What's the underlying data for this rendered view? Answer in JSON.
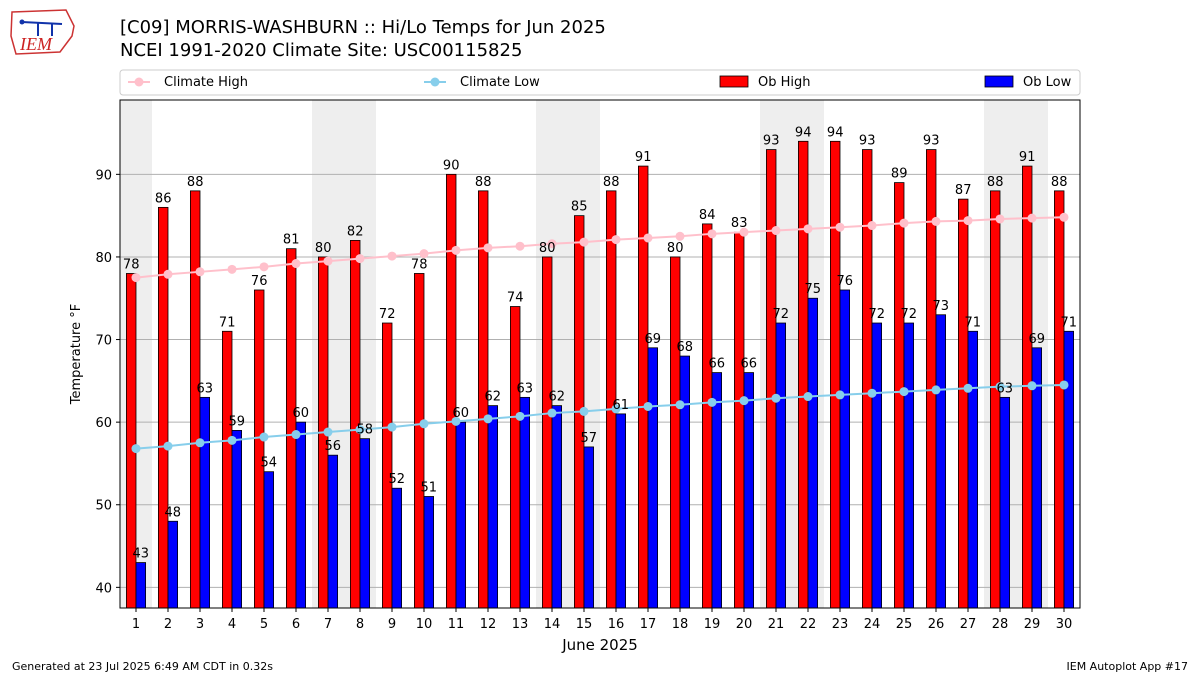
{
  "header": {
    "title_line1": "[C09] MORRIS-WASHBURN :: Hi/Lo Temps for Jun 2025",
    "title_line2": "NCEI 1991-2020 Climate Site: USC00115825",
    "logo_text": "IEM"
  },
  "footer": {
    "left": "Generated at 23 Jul 2025 6:49 AM CDT in 0.32s",
    "right": "IEM Autoplot App #17"
  },
  "colors": {
    "ob_high": "#ff0000",
    "ob_low": "#0000ff",
    "climate_high": "#ffc0cb",
    "climate_low": "#87ceeb",
    "weekend_shade": "#eeeeee",
    "grid": "#b0b0b0"
  },
  "chart_data": {
    "type": "bar",
    "xlabel": "June 2025",
    "ylabel": "Temperature °F",
    "ylim": [
      37.5,
      99
    ],
    "yticks": [
      40,
      50,
      60,
      70,
      80,
      90
    ],
    "grid": "horizontal",
    "legend_position": "top",
    "categories": [
      "1",
      "2",
      "3",
      "4",
      "5",
      "6",
      "7",
      "8",
      "9",
      "10",
      "11",
      "12",
      "13",
      "14",
      "15",
      "16",
      "17",
      "18",
      "19",
      "20",
      "21",
      "22",
      "23",
      "24",
      "25",
      "26",
      "27",
      "28",
      "29",
      "30"
    ],
    "weekend_days": [
      1,
      7,
      8,
      14,
      15,
      21,
      22,
      28,
      29
    ],
    "series": [
      {
        "name": "Climate High",
        "kind": "line",
        "values": [
          77.5,
          77.9,
          78.2,
          78.5,
          78.8,
          79.2,
          79.5,
          79.8,
          80.1,
          80.4,
          80.8,
          81.1,
          81.3,
          81.6,
          81.8,
          82.1,
          82.3,
          82.5,
          82.8,
          83.0,
          83.2,
          83.4,
          83.6,
          83.8,
          84.1,
          84.3,
          84.4,
          84.6,
          84.7,
          84.8
        ]
      },
      {
        "name": "Climate Low",
        "kind": "line",
        "values": [
          56.8,
          57.1,
          57.5,
          57.8,
          58.2,
          58.5,
          58.8,
          59.1,
          59.4,
          59.8,
          60.1,
          60.4,
          60.7,
          61.1,
          61.3,
          61.6,
          61.9,
          62.1,
          62.4,
          62.6,
          62.9,
          63.1,
          63.3,
          63.5,
          63.7,
          63.9,
          64.1,
          64.3,
          64.4,
          64.5
        ]
      },
      {
        "name": "Ob High",
        "kind": "bar",
        "values": [
          78,
          86,
          88,
          71,
          76,
          81,
          80,
          82,
          72,
          78,
          90,
          88,
          74,
          80,
          85,
          88,
          91,
          80,
          84,
          83,
          93,
          94,
          94,
          93,
          89,
          93,
          87,
          88,
          91,
          88
        ]
      },
      {
        "name": "Ob Low",
        "kind": "bar",
        "values": [
          43,
          48,
          63,
          59,
          54,
          60,
          56,
          58,
          52,
          51,
          60,
          62,
          63,
          62,
          57,
          61,
          69,
          68,
          66,
          66,
          72,
          75,
          76,
          72,
          72,
          73,
          71,
          63,
          69,
          71
        ]
      }
    ]
  }
}
